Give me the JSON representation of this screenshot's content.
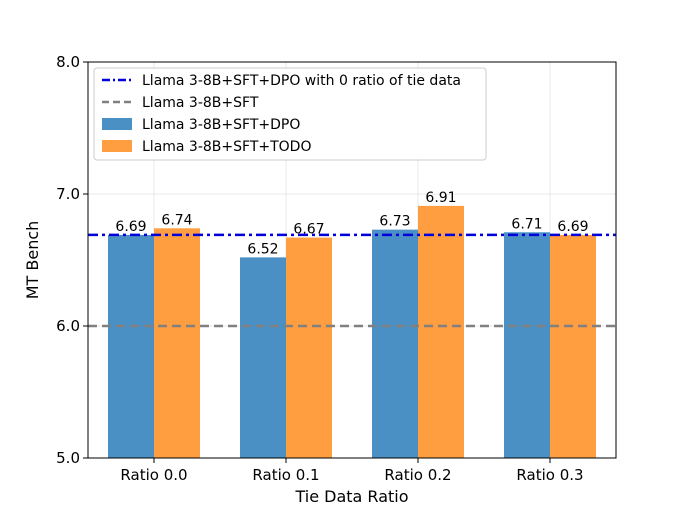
{
  "chart_data": {
    "type": "bar",
    "title": "",
    "xlabel": "Tie Data Ratio",
    "ylabel": "MT Bench",
    "ylim": [
      5.0,
      8.0
    ],
    "yticks": [
      "5.0",
      "6.0",
      "7.0",
      "8.0"
    ],
    "categories": [
      "Ratio 0.0",
      "Ratio 0.1",
      "Ratio 0.2",
      "Ratio 0.3"
    ],
    "series": [
      {
        "name": "Llama 3-8B+SFT+DPO",
        "values": [
          6.69,
          6.52,
          6.73,
          6.71
        ],
        "labels": [
          "6.69",
          "6.52",
          "6.73",
          "6.71"
        ],
        "color": "#4a90c4"
      },
      {
        "name": "Llama 3-8B+SFT+TODO",
        "values": [
          6.74,
          6.67,
          6.91,
          6.69
        ],
        "labels": [
          "6.74",
          "6.67",
          "6.91",
          "6.69"
        ],
        "color": "#ff9e40"
      }
    ],
    "reference_lines": [
      {
        "name": "Llama 3-8B+SFT+DPO with 0 ratio of tie data",
        "value": 6.69,
        "style": "dash-dot",
        "color": "#0000dd"
      },
      {
        "name": "Llama 3-8B+SFT",
        "value": 6.0,
        "style": "dashed",
        "color": "#808080"
      }
    ],
    "legend_position": "top-left",
    "grid": true
  }
}
